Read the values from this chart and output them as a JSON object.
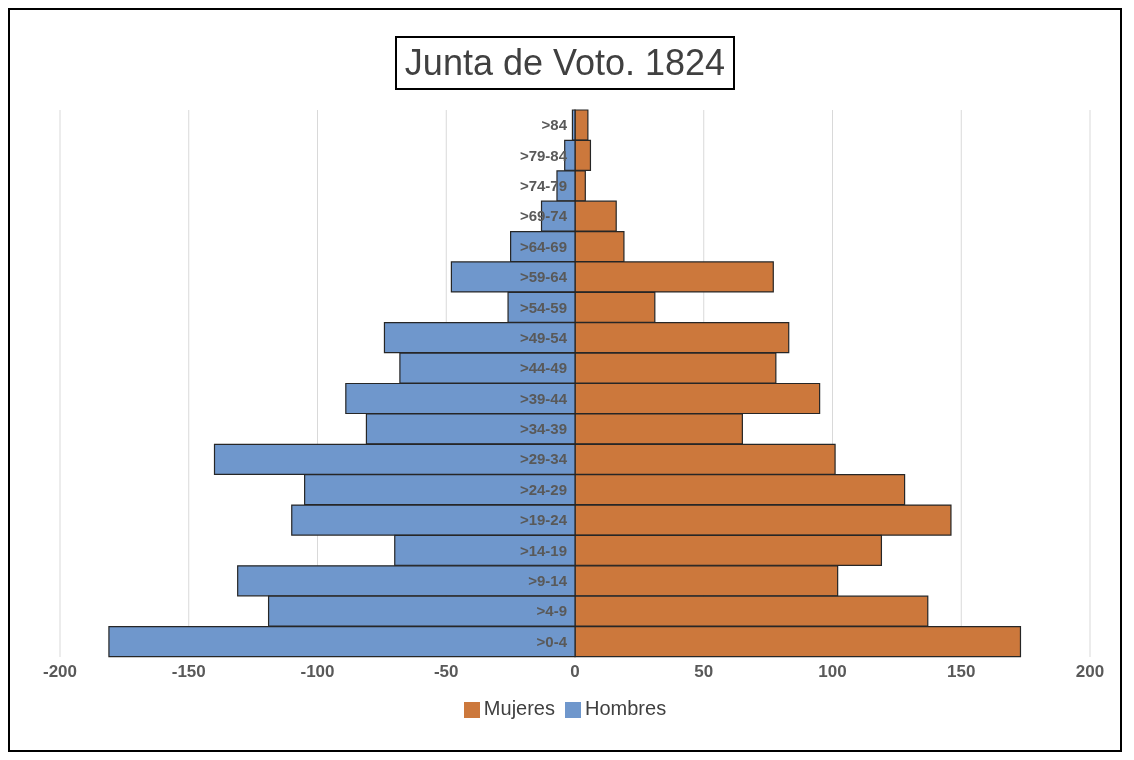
{
  "chart_data": {
    "type": "bar",
    "title": "Junta de Voto. 1824",
    "orientation": "horizontal",
    "stacked": true,
    "categories": [
      ">84",
      ">79-84",
      ">74-79",
      ">69-74",
      ">64-69",
      ">59-64",
      ">54-59",
      ">49-54",
      ">44-49",
      ">39-44",
      ">34-39",
      ">29-34",
      ">24-29",
      ">19-24",
      ">14-19",
      ">9-14",
      ">4-9",
      ">0-4"
    ],
    "series": [
      {
        "name": "Mujeres",
        "color": "#cc783c",
        "values": [
          5,
          6,
          4,
          16,
          19,
          77,
          31,
          83,
          78,
          95,
          65,
          101,
          128,
          146,
          119,
          102,
          137,
          173
        ]
      },
      {
        "name": "Hombres",
        "color": "#6f97cc",
        "values": [
          -1,
          -4,
          -7,
          -13,
          -25,
          -48,
          -26,
          -74,
          -68,
          -89,
          -81,
          -140,
          -105,
          -110,
          -70,
          -131,
          -119,
          -181
        ]
      }
    ],
    "xlim": [
      -200,
      200
    ],
    "xticks": [
      -200,
      -150,
      -100,
      -50,
      0,
      50,
      100,
      150,
      200
    ],
    "grid": "x",
    "legend": "bottom"
  }
}
